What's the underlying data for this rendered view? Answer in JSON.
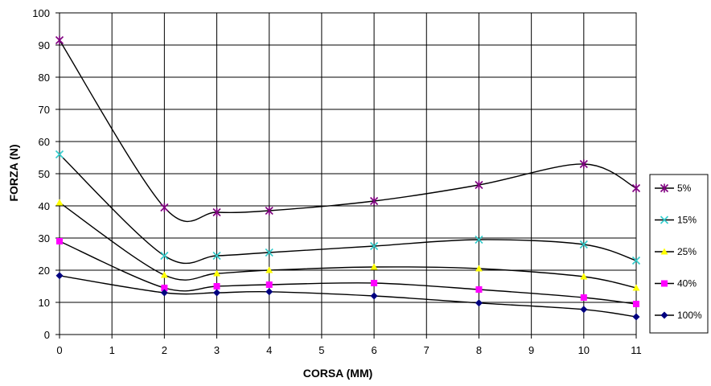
{
  "chart_data": {
    "type": "line",
    "title": "",
    "xlabel": "CORSA (MM)",
    "ylabel": "FORZA (N)",
    "xlim": [
      0,
      11
    ],
    "ylim": [
      0,
      100
    ],
    "x_ticks": [
      "0",
      "1",
      "2",
      "3",
      "4",
      "5",
      "6",
      "7",
      "8",
      "9",
      "10",
      "11"
    ],
    "y_ticks": [
      "0",
      "10",
      "20",
      "30",
      "40",
      "50",
      "60",
      "70",
      "80",
      "90",
      "100"
    ],
    "grid": true,
    "legend_position": "right",
    "x": [
      0,
      2,
      3,
      4,
      6,
      8,
      10,
      11
    ],
    "series": [
      {
        "name": "5%",
        "color": "#800080",
        "marker": "star",
        "values": [
          91.5,
          39.5,
          38,
          38.5,
          41.5,
          46.5,
          53,
          45.5
        ]
      },
      {
        "name": "15%",
        "color": "#33CCCC",
        "marker": "cross",
        "values": [
          56,
          24.5,
          24.5,
          25.5,
          27.5,
          29.5,
          28,
          23
        ]
      },
      {
        "name": "25%",
        "color": "#FFFF00",
        "marker": "triangle",
        "values": [
          41,
          18.5,
          19,
          20,
          21,
          20.5,
          18,
          14.5
        ]
      },
      {
        "name": "40%",
        "color": "#FF00FF",
        "marker": "square",
        "values": [
          29,
          14.5,
          15,
          15.5,
          16,
          14,
          11.5,
          9.5
        ]
      },
      {
        "name": "100%",
        "color": "#000080",
        "marker": "diamond",
        "values": [
          18.3,
          13,
          13,
          13.3,
          12,
          9.8,
          7.8,
          5.5
        ]
      }
    ]
  }
}
